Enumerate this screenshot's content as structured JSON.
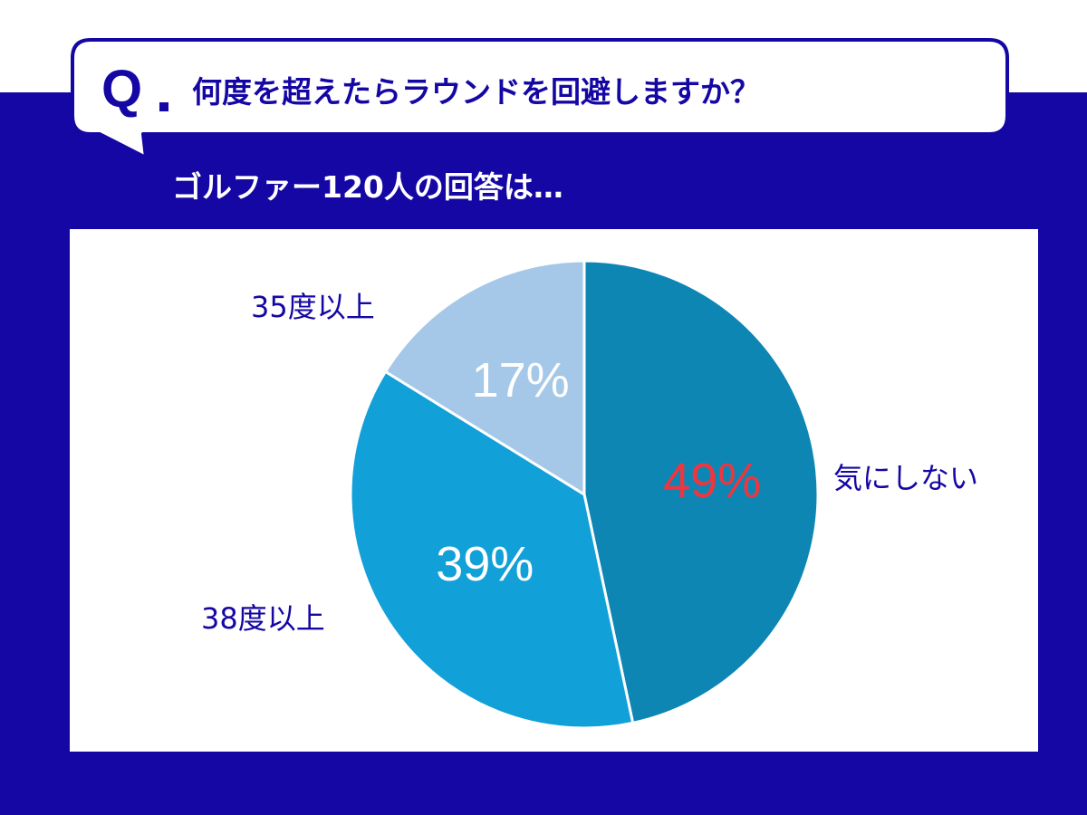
{
  "question": {
    "q_mark": "Q",
    "text": "何度を超えたらラウンドを回避しますか？"
  },
  "subtitle": "ゴルファー120人の回答は…",
  "chart_data": {
    "type": "pie",
    "slices": [
      {
        "label": "気にしない",
        "value": 49,
        "percent_label": "49%",
        "color": "#0e86b4",
        "label_color": "#f0353f"
      },
      {
        "label": "38度以上",
        "value": 39,
        "percent_label": "39%",
        "color": "#12a0d8",
        "label_color": "#ffffff"
      },
      {
        "label": "35度以上",
        "value": 17,
        "percent_label": "17%",
        "color": "#a5c8e8",
        "label_color": "#ffffff"
      }
    ],
    "start": "top",
    "direction": "clockwise"
  },
  "colors": {
    "navy": "#1507a3",
    "white": "#ffffff"
  }
}
